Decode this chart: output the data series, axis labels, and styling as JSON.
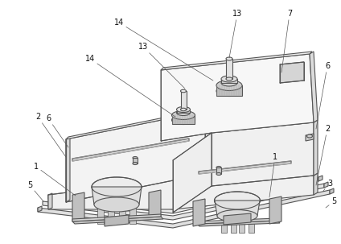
{
  "fig_width": 4.24,
  "fig_height": 3.03,
  "dpi": 100,
  "bg_color": "#ffffff",
  "line_color": "#555555"
}
